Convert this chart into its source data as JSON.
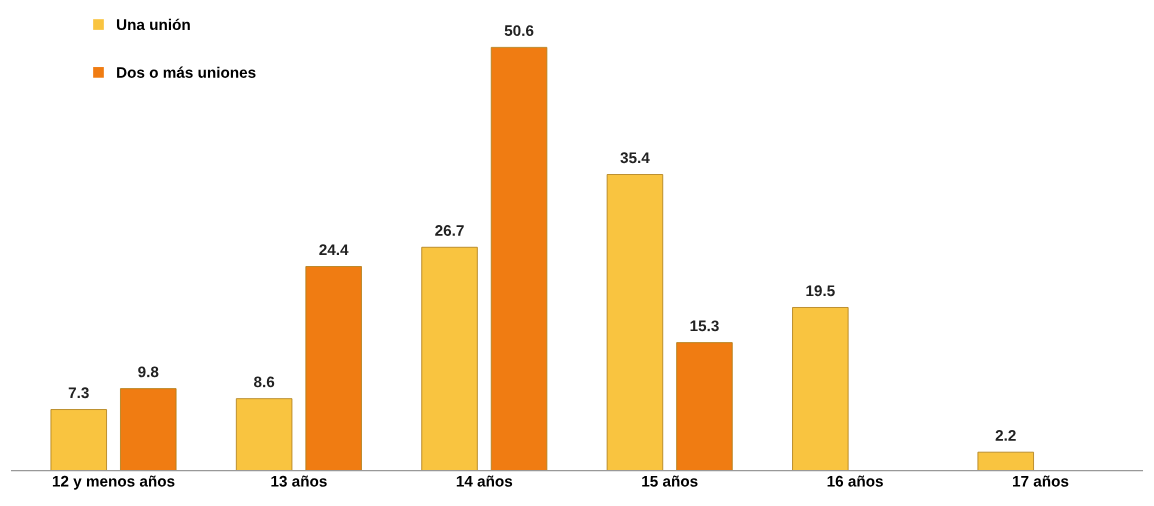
{
  "chart_data": {
    "type": "bar",
    "categories": [
      "12 y menos años",
      "13 años",
      "14 años",
      "15 años",
      "16 años",
      "17 años"
    ],
    "series": [
      {
        "name": "Una unión",
        "color": "#f9c440",
        "values": [
          7.3,
          8.6,
          26.7,
          35.4,
          19.5,
          2.2
        ]
      },
      {
        "name": "Dos o más uniones",
        "color": "#f07c12",
        "values": [
          9.8,
          24.4,
          50.6,
          15.3,
          null,
          null
        ]
      }
    ],
    "data_labels": true,
    "legend": "top left",
    "grid": false
  }
}
